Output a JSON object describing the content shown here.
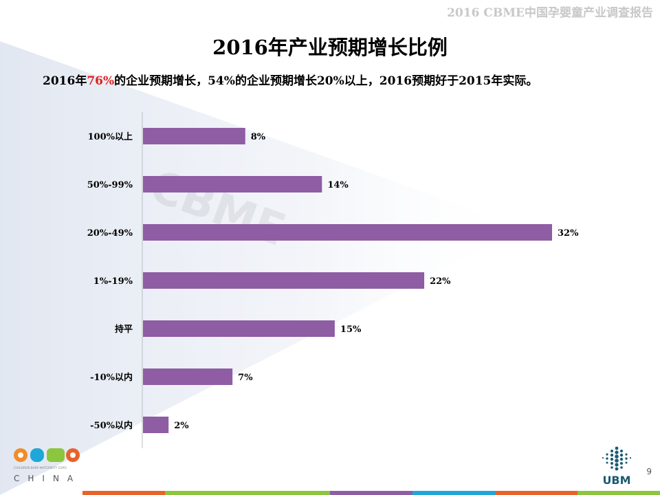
{
  "header": {
    "report_title": "2016 CBME中国孕婴童产业调查报告"
  },
  "title": "2016年产业预期增长比例",
  "subtitle": {
    "part1": "2016年",
    "highlight": "76%",
    "part2": "的企业预期增长，54%的企业预期增长20%以上，2016预期好于2015年实际。"
  },
  "chart_data": {
    "type": "bar",
    "orientation": "horizontal",
    "categories": [
      "100%以上",
      "50%-99%",
      "20%-49%",
      "1%-19%",
      "持平",
      "-10%以内",
      "-50%以内"
    ],
    "values": [
      8,
      14,
      32,
      22,
      15,
      7,
      2
    ],
    "data_labels": [
      "8%",
      "14%",
      "32%",
      "22%",
      "15%",
      "7%",
      "2%"
    ],
    "xlim": [
      0,
      32
    ],
    "unit": "%",
    "bar_color": "#8e5da3",
    "grid": false,
    "title": "",
    "xlabel": "",
    "ylabel": ""
  },
  "footer": {
    "page_number": "9",
    "logo_left_text": "CBME",
    "logo_left_sub": "CHINA",
    "logo_left_tagline": "CHILDREN·BABY·MATERNITY EXPO",
    "logo_right_text": "UBM"
  },
  "colors": {
    "bottom_bar": [
      "#e8622a",
      "#8cc63e",
      "#8cc63e",
      "#8e5da3",
      "#1fa7d9",
      "#e8622a",
      "#8cc63e"
    ]
  }
}
